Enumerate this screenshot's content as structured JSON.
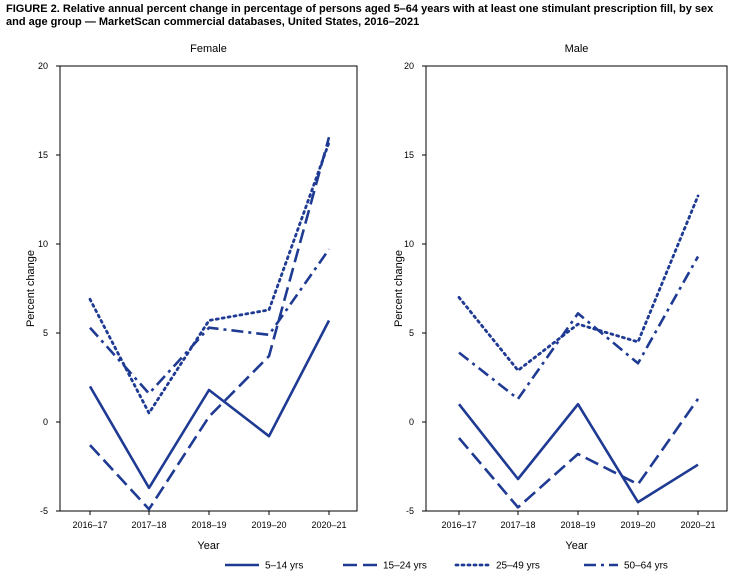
{
  "figure": {
    "label": "FIGURE 2.",
    "title": "Relative annual percent change in percentage of persons aged 5–64 years with at least one stimulant prescription fill, by sex and age group — MarketScan commercial databases, United States, 2016–2021"
  },
  "colors": {
    "series": "#1f3a93",
    "axis": "#000000"
  },
  "chart_data": [
    {
      "type": "line",
      "title": "Female",
      "xlabel": "Year",
      "ylabel": "Percent change",
      "categories": [
        "2016–17",
        "2017–18",
        "2018–19",
        "2019–20",
        "2020–21"
      ],
      "ylim": [
        -5,
        20
      ],
      "yticks": [
        -5,
        0,
        5,
        10,
        15,
        20
      ],
      "grid": false,
      "series": [
        {
          "name": "5–14 yrs",
          "style": "solid",
          "values": [
            2.0,
            -3.7,
            1.8,
            -0.8,
            5.7
          ]
        },
        {
          "name": "15–24 yrs",
          "style": "dashed",
          "values": [
            -1.3,
            -4.9,
            0.3,
            3.7,
            16.0
          ]
        },
        {
          "name": "25–49 yrs",
          "style": "dotted",
          "values": [
            6.9,
            0.5,
            5.7,
            6.3,
            15.7
          ]
        },
        {
          "name": "50–64 yrs",
          "style": "dash-dot",
          "values": [
            5.3,
            1.6,
            5.3,
            4.9,
            9.7
          ]
        }
      ]
    },
    {
      "type": "line",
      "title": "Male",
      "xlabel": "Year",
      "ylabel": "Percent change",
      "categories": [
        "2016–17",
        "2017–18",
        "2018–19",
        "2019–20",
        "2020–21"
      ],
      "ylim": [
        -5,
        20
      ],
      "yticks": [
        -5,
        0,
        5,
        10,
        15,
        20
      ],
      "grid": false,
      "series": [
        {
          "name": "5–14 yrs",
          "style": "solid",
          "values": [
            1.0,
            -3.2,
            1.0,
            -4.5,
            -2.4
          ]
        },
        {
          "name": "15–24 yrs",
          "style": "dashed",
          "values": [
            -0.9,
            -4.8,
            -1.8,
            -3.5,
            1.3
          ]
        },
        {
          "name": "25–49 yrs",
          "style": "dotted",
          "values": [
            7.0,
            2.9,
            5.5,
            4.5,
            12.7
          ]
        },
        {
          "name": "50–64 yrs",
          "style": "dash-dot",
          "values": [
            3.9,
            1.3,
            6.1,
            3.3,
            9.3
          ]
        }
      ]
    }
  ],
  "legend": {
    "placement": "bottom",
    "items": [
      {
        "label": "5–14 yrs",
        "style": "solid"
      },
      {
        "label": "15–24 yrs",
        "style": "dashed"
      },
      {
        "label": "25–49 yrs",
        "style": "dotted"
      },
      {
        "label": "50–64 yrs",
        "style": "dash-dot"
      }
    ]
  }
}
